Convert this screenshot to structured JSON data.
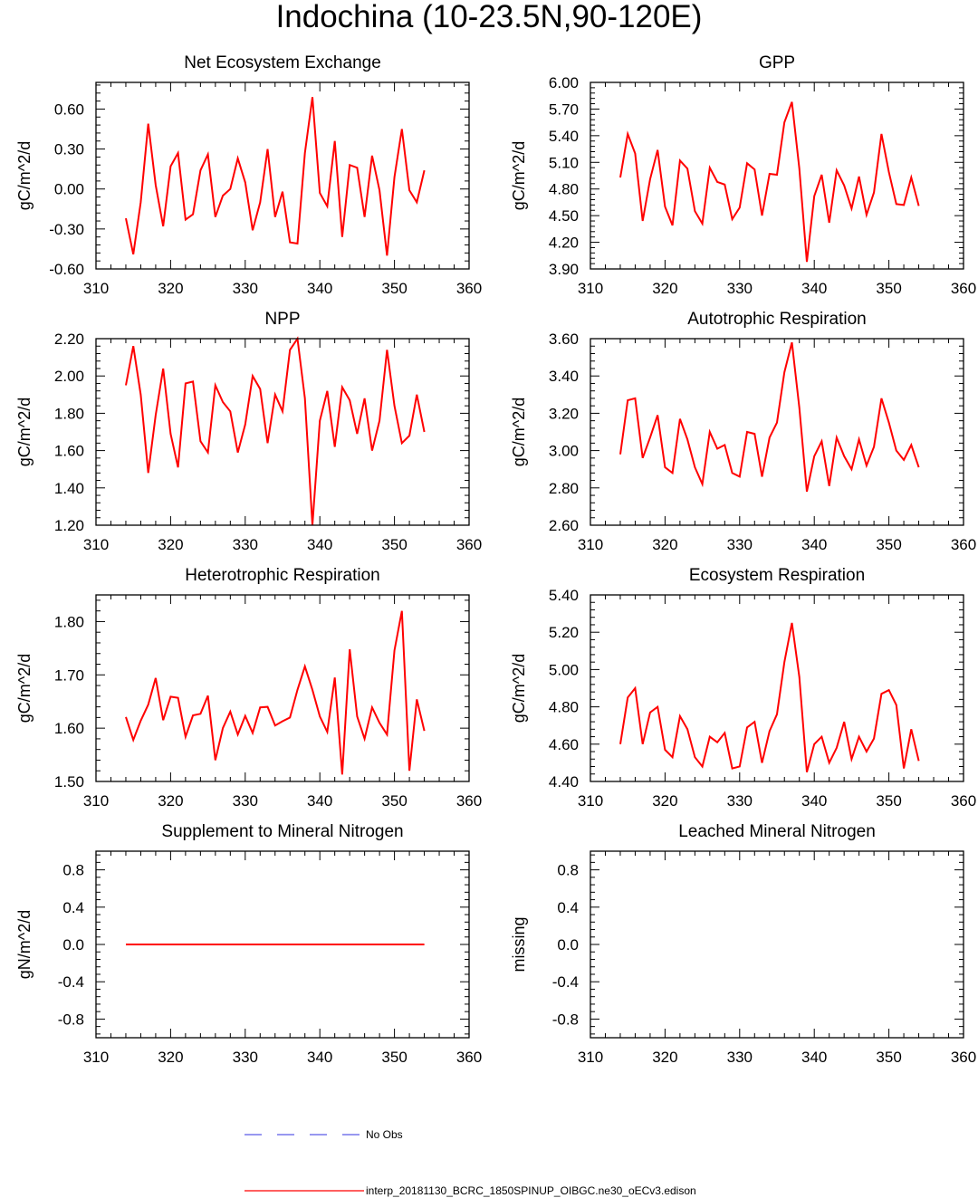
{
  "figure": {
    "title": "Indochina (10-23.5N,90-120E)"
  },
  "legend": {
    "items": [
      {
        "label": "No Obs",
        "color": "#5a5ae6",
        "style": "dashed"
      },
      {
        "label": "interp_20181130_BCRC_1850SPINUP_OIBGC.ne30_oECv3.edison",
        "color": "#ff0000",
        "style": "solid"
      }
    ]
  },
  "chart_data": [
    {
      "type": "line",
      "title": "Net Ecosystem Exchange",
      "ylabel": "gC/m^2/d",
      "xlim": [
        310,
        360
      ],
      "ylim": [
        -0.6,
        0.8
      ],
      "xticks": [
        310,
        320,
        330,
        340,
        350,
        360
      ],
      "xtick_labels": [
        "310",
        "320",
        "330",
        "340",
        "350",
        "360"
      ],
      "yticks": [
        -0.6,
        -0.3,
        0.0,
        0.3,
        0.6
      ],
      "ytick_labels": [
        "-0.60",
        "-0.30",
        "0.00",
        "0.30",
        "0.60"
      ],
      "series": [
        {
          "name": "interp_20181130_BCRC_1850SPINUP_OIBGC.ne30_oECv3.edison",
          "color": "#ff0000",
          "x": [
            314,
            315,
            316,
            317,
            318,
            319,
            320,
            321,
            322,
            323,
            324,
            325,
            326,
            327,
            328,
            329,
            330,
            331,
            332,
            333,
            334,
            335,
            336,
            337,
            338,
            339,
            340,
            341,
            342,
            343,
            344,
            345,
            346,
            347,
            348,
            349,
            350,
            351,
            352,
            353,
            354
          ],
          "values": [
            -0.22,
            -0.49,
            -0.1,
            0.49,
            0.03,
            -0.28,
            0.17,
            0.27,
            -0.23,
            -0.19,
            0.14,
            0.26,
            -0.21,
            -0.05,
            0.0,
            0.23,
            0.05,
            -0.31,
            -0.1,
            0.3,
            -0.21,
            -0.02,
            -0.4,
            -0.41,
            0.27,
            0.69,
            -0.03,
            -0.13,
            0.36,
            -0.36,
            0.18,
            0.16,
            -0.21,
            0.25,
            -0.01,
            -0.5,
            0.09,
            0.45,
            -0.01,
            -0.1,
            0.14
          ]
        }
      ]
    },
    {
      "type": "line",
      "title": "GPP",
      "ylabel": "gC/m^2/d",
      "xlim": [
        310,
        360
      ],
      "ylim": [
        3.9,
        6.0
      ],
      "xticks": [
        310,
        320,
        330,
        340,
        350,
        360
      ],
      "xtick_labels": [
        "310",
        "320",
        "330",
        "340",
        "350",
        "360"
      ],
      "yticks": [
        3.9,
        4.2,
        4.5,
        4.8,
        5.1,
        5.4,
        5.7,
        6.0
      ],
      "ytick_labels": [
        "3.90",
        "4.20",
        "4.50",
        "4.80",
        "5.10",
        "5.40",
        "5.70",
        "6.00"
      ],
      "series": [
        {
          "name": "interp_20181130_BCRC_1850SPINUP_OIBGC.ne30_oECv3.edison",
          "color": "#ff0000",
          "x": [
            314,
            315,
            316,
            317,
            318,
            319,
            320,
            321,
            322,
            323,
            324,
            325,
            326,
            327,
            328,
            329,
            330,
            331,
            332,
            333,
            334,
            335,
            336,
            337,
            338,
            339,
            340,
            341,
            342,
            343,
            344,
            345,
            346,
            347,
            348,
            349,
            350,
            351,
            352,
            353,
            354
          ],
          "values": [
            4.93,
            5.42,
            5.2,
            4.44,
            4.91,
            5.24,
            4.6,
            4.39,
            5.12,
            5.03,
            4.55,
            4.41,
            5.04,
            4.88,
            4.85,
            4.46,
            4.59,
            5.09,
            5.02,
            4.5,
            4.97,
            4.96,
            5.55,
            5.78,
            5.03,
            3.98,
            4.72,
            4.96,
            4.42,
            5.01,
            4.84,
            4.58,
            4.94,
            4.51,
            4.76,
            5.42,
            4.99,
            4.63,
            4.62,
            4.93,
            4.61
          ]
        }
      ]
    },
    {
      "type": "line",
      "title": "NPP",
      "ylabel": "gC/m^2/d",
      "xlim": [
        310,
        360
      ],
      "ylim": [
        1.2,
        2.2
      ],
      "xticks": [
        310,
        320,
        330,
        340,
        350,
        360
      ],
      "xtick_labels": [
        "310",
        "320",
        "330",
        "340",
        "350",
        "360"
      ],
      "yticks": [
        1.2,
        1.4,
        1.6,
        1.8,
        2.0,
        2.2
      ],
      "ytick_labels": [
        "1.20",
        "1.40",
        "1.60",
        "1.80",
        "2.00",
        "2.20"
      ],
      "series": [
        {
          "name": "interp_20181130_BCRC_1850SPINUP_OIBGC.ne30_oECv3.edison",
          "color": "#ff0000",
          "x": [
            314,
            315,
            316,
            317,
            318,
            319,
            320,
            321,
            322,
            323,
            324,
            325,
            326,
            327,
            328,
            329,
            330,
            331,
            332,
            333,
            334,
            335,
            336,
            337,
            338,
            339,
            340,
            341,
            342,
            343,
            344,
            345,
            346,
            347,
            348,
            349,
            350,
            351,
            352,
            353,
            354
          ],
          "values": [
            1.95,
            2.16,
            1.9,
            1.48,
            1.79,
            2.04,
            1.69,
            1.51,
            1.96,
            1.97,
            1.65,
            1.59,
            1.95,
            1.86,
            1.81,
            1.59,
            1.74,
            2.0,
            1.93,
            1.64,
            1.9,
            1.81,
            2.14,
            2.2,
            1.88,
            1.2,
            1.76,
            1.92,
            1.62,
            1.94,
            1.87,
            1.69,
            1.88,
            1.6,
            1.76,
            2.14,
            1.84,
            1.64,
            1.68,
            1.9,
            1.7
          ]
        }
      ]
    },
    {
      "type": "line",
      "title": "Autotrophic Respiration",
      "ylabel": "gC/m^2/d",
      "xlim": [
        310,
        360
      ],
      "ylim": [
        2.6,
        3.6
      ],
      "xticks": [
        310,
        320,
        330,
        340,
        350,
        360
      ],
      "xtick_labels": [
        "310",
        "320",
        "330",
        "340",
        "350",
        "360"
      ],
      "yticks": [
        2.6,
        2.8,
        3.0,
        3.2,
        3.4,
        3.6
      ],
      "ytick_labels": [
        "2.60",
        "2.80",
        "3.00",
        "3.20",
        "3.40",
        "3.60"
      ],
      "series": [
        {
          "name": "interp_20181130_BCRC_1850SPINUP_OIBGC.ne30_oECv3.edison",
          "color": "#ff0000",
          "x": [
            314,
            315,
            316,
            317,
            318,
            319,
            320,
            321,
            322,
            323,
            324,
            325,
            326,
            327,
            328,
            329,
            330,
            331,
            332,
            333,
            334,
            335,
            336,
            337,
            338,
            339,
            340,
            341,
            342,
            343,
            344,
            345,
            346,
            347,
            348,
            349,
            350,
            351,
            352,
            353,
            354
          ],
          "values": [
            2.98,
            3.27,
            3.28,
            2.96,
            3.07,
            3.19,
            2.91,
            2.88,
            3.17,
            3.06,
            2.91,
            2.82,
            3.1,
            3.01,
            3.03,
            2.88,
            2.86,
            3.1,
            3.09,
            2.86,
            3.07,
            3.15,
            3.42,
            3.58,
            3.23,
            2.78,
            2.97,
            3.05,
            2.81,
            3.07,
            2.97,
            2.9,
            3.06,
            2.92,
            3.02,
            3.28,
            3.15,
            3.0,
            2.95,
            3.03,
            2.91
          ]
        }
      ]
    },
    {
      "type": "line",
      "title": "Heterotrophic Respiration",
      "ylabel": "gC/m^2/d",
      "xlim": [
        310,
        360
      ],
      "ylim": [
        1.5,
        1.85
      ],
      "xticks": [
        310,
        320,
        330,
        340,
        350,
        360
      ],
      "xtick_labels": [
        "310",
        "320",
        "330",
        "340",
        "350",
        "360"
      ],
      "yticks": [
        1.5,
        1.6,
        1.7,
        1.8
      ],
      "ytick_labels": [
        "1.50",
        "1.60",
        "1.70",
        "1.80"
      ],
      "series": [
        {
          "name": "interp_20181130_BCRC_1850SPINUP_OIBGC.ne30_oECv3.edison",
          "color": "#ff0000",
          "x": [
            314,
            315,
            316,
            317,
            318,
            319,
            320,
            321,
            322,
            323,
            324,
            325,
            326,
            327,
            328,
            329,
            330,
            331,
            332,
            333,
            334,
            335,
            336,
            337,
            338,
            339,
            340,
            341,
            342,
            343,
            344,
            345,
            346,
            347,
            348,
            349,
            350,
            351,
            352,
            353,
            354
          ],
          "values": [
            1.621,
            1.578,
            1.614,
            1.644,
            1.694,
            1.615,
            1.659,
            1.657,
            1.584,
            1.624,
            1.627,
            1.661,
            1.54,
            1.6,
            1.631,
            1.588,
            1.623,
            1.591,
            1.639,
            1.64,
            1.605,
            1.613,
            1.62,
            1.672,
            1.716,
            1.672,
            1.622,
            1.593,
            1.695,
            1.513,
            1.748,
            1.622,
            1.58,
            1.639,
            1.61,
            1.588,
            1.746,
            1.82,
            1.52,
            1.654,
            1.595
          ]
        }
      ]
    },
    {
      "type": "line",
      "title": "Ecosystem Respiration",
      "ylabel": "gC/m^2/d",
      "xlim": [
        310,
        360
      ],
      "ylim": [
        4.4,
        5.4
      ],
      "xticks": [
        310,
        320,
        330,
        340,
        350,
        360
      ],
      "xtick_labels": [
        "310",
        "320",
        "330",
        "340",
        "350",
        "360"
      ],
      "yticks": [
        4.4,
        4.6,
        4.8,
        5.0,
        5.2,
        5.4
      ],
      "ytick_labels": [
        "4.40",
        "4.60",
        "4.80",
        "5.00",
        "5.20",
        "5.40"
      ],
      "series": [
        {
          "name": "interp_20181130_BCRC_1850SPINUP_OIBGC.ne30_oECv3.edison",
          "color": "#ff0000",
          "x": [
            314,
            315,
            316,
            317,
            318,
            319,
            320,
            321,
            322,
            323,
            324,
            325,
            326,
            327,
            328,
            329,
            330,
            331,
            332,
            333,
            334,
            335,
            336,
            337,
            338,
            339,
            340,
            341,
            342,
            343,
            344,
            345,
            346,
            347,
            348,
            349,
            350,
            351,
            352,
            353,
            354
          ],
          "values": [
            4.6,
            4.85,
            4.9,
            4.6,
            4.77,
            4.8,
            4.57,
            4.53,
            4.75,
            4.68,
            4.53,
            4.48,
            4.64,
            4.61,
            4.66,
            4.47,
            4.48,
            4.69,
            4.72,
            4.5,
            4.67,
            4.76,
            5.04,
            5.25,
            4.96,
            4.45,
            4.6,
            4.64,
            4.5,
            4.58,
            4.72,
            4.52,
            4.64,
            4.56,
            4.63,
            4.87,
            4.89,
            4.81,
            4.47,
            4.68,
            4.51
          ]
        }
      ]
    },
    {
      "type": "line",
      "title": "Supplement to Mineral Nitrogen",
      "ylabel": "gN/m^2/d",
      "xlim": [
        310,
        360
      ],
      "ylim": [
        -1.0,
        1.0
      ],
      "xticks": [
        310,
        320,
        330,
        340,
        350,
        360
      ],
      "xtick_labels": [
        "310",
        "320",
        "330",
        "340",
        "350",
        "360"
      ],
      "yticks": [
        -0.8,
        -0.4,
        0.0,
        0.4,
        0.8
      ],
      "ytick_labels": [
        "-0.8",
        "-0.4",
        "0.0",
        "0.4",
        "0.8"
      ],
      "series": [
        {
          "name": "interp_20181130_BCRC_1850SPINUP_OIBGC.ne30_oECv3.edison",
          "color": "#ff0000",
          "x": [
            314,
            354
          ],
          "values": [
            0.0,
            0.0
          ]
        }
      ]
    },
    {
      "type": "line",
      "title": "Leached Mineral Nitrogen",
      "ylabel": "missing",
      "xlim": [
        310,
        360
      ],
      "ylim": [
        -1.0,
        1.0
      ],
      "xticks": [
        310,
        320,
        330,
        340,
        350,
        360
      ],
      "xtick_labels": [
        "310",
        "320",
        "330",
        "340",
        "350",
        "360"
      ],
      "yticks": [
        -0.8,
        -0.4,
        0.0,
        0.4,
        0.8
      ],
      "ytick_labels": [
        "-0.8",
        "-0.4",
        "0.0",
        "0.4",
        "0.8"
      ],
      "series": []
    }
  ]
}
